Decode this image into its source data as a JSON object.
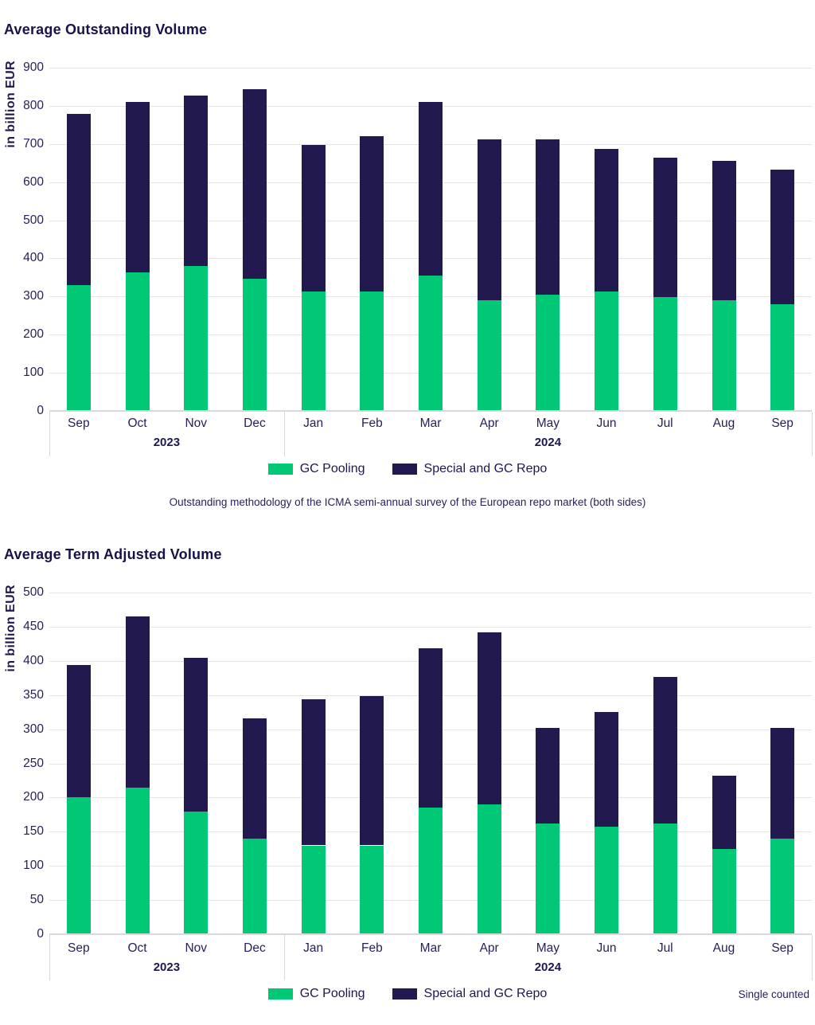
{
  "colors": {
    "gc_pooling_green": "#00c875",
    "special_repo_navy": "#221a4e",
    "text_navy": "#1c1850",
    "gridline": "#e4e4e4",
    "axis": "#d9d9d9"
  },
  "chart_data": [
    {
      "type": "bar",
      "stacked": true,
      "title": "Average Outstanding Volume",
      "ylabel": "in billion EUR",
      "ylim": [
        0,
        900
      ],
      "ytick_step": 100,
      "grid": true,
      "legend_position": "bottom-center",
      "categories": [
        "Sep",
        "Oct",
        "Nov",
        "Dec",
        "Jan",
        "Feb",
        "Mar",
        "Apr",
        "May",
        "Jun",
        "Jul",
        "Aug",
        "Sep"
      ],
      "year_groups": [
        {
          "label": "2023",
          "span": 4
        },
        {
          "label": "2024",
          "span": 9
        }
      ],
      "series": [
        {
          "name": "GC Pooling",
          "color": "#00c875",
          "values": [
            330,
            363,
            380,
            347,
            314,
            314,
            355,
            290,
            305,
            314,
            298,
            290,
            280
          ]
        },
        {
          "name": "Special and GC Repo",
          "color": "#221a4e",
          "values": [
            448,
            447,
            447,
            496,
            383,
            407,
            455,
            422,
            407,
            374,
            367,
            366,
            352
          ]
        }
      ],
      "totals": [
        778,
        810,
        827,
        843,
        697,
        721,
        810,
        712,
        712,
        688,
        665,
        656,
        632
      ],
      "footnote": "Outstanding methodology of the ICMA semi-annual survey of the European repo market (both sides)"
    },
    {
      "type": "bar",
      "stacked": true,
      "title": "Average Term Adjusted Volume",
      "ylabel": "in billion EUR",
      "ylim": [
        0,
        500
      ],
      "ytick_step": 50,
      "grid": true,
      "legend_position": "bottom-center",
      "categories": [
        "Sep",
        "Oct",
        "Nov",
        "Dec",
        "Jan",
        "Feb",
        "Mar",
        "Apr",
        "May",
        "Jun",
        "Jul",
        "Aug",
        "Sep"
      ],
      "year_groups": [
        {
          "label": "2023",
          "span": 4
        },
        {
          "label": "2024",
          "span": 9
        }
      ],
      "series": [
        {
          "name": "GC Pooling",
          "color": "#00c875",
          "values": [
            200,
            214,
            180,
            140,
            130,
            130,
            185,
            190,
            162,
            157,
            162,
            125,
            140
          ]
        },
        {
          "name": "Special and GC Repo",
          "color": "#221a4e",
          "values": [
            194,
            251,
            224,
            176,
            214,
            219,
            233,
            252,
            140,
            168,
            214,
            107,
            162
          ]
        }
      ],
      "totals": [
        394,
        465,
        404,
        316,
        344,
        349,
        418,
        442,
        302,
        325,
        376,
        232,
        302
      ],
      "right_note": "Single counted"
    }
  ]
}
